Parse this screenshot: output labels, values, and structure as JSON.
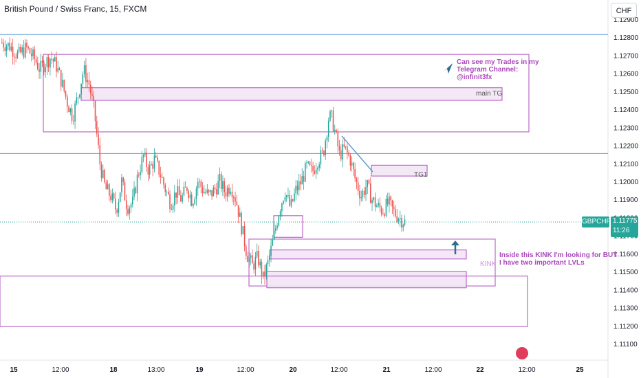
{
  "header": {
    "title": "British Pound / Swiss Franc, 15, FXCM",
    "currency": "CHF"
  },
  "price_tag": {
    "symbol": "GBPCHF",
    "price": "1.11775",
    "countdown": "11:26"
  },
  "annotations": {
    "trades_note": [
      "Can see my Trades in my",
      "Telegram Channel:",
      "@infinit3fx"
    ],
    "main_tg": "main TG",
    "tg1": "TG1",
    "kink": "KINK",
    "kink_note": [
      "Inside this KINK I'm looking for BUY",
      "I have two important LVLs"
    ]
  },
  "colors": {
    "up": "#26a69a",
    "down": "#ef5350",
    "zone_border": "#ba68c8",
    "zone_fill": "#f3e5f5",
    "hline": "#5b9bd5",
    "note_text": "#ab47bc",
    "arrow": "#2e6d8e"
  },
  "chart_data": {
    "type": "candlestick",
    "title": "British Pound / Swiss Franc, 15, FXCM",
    "ylim": [
      1.1105,
      1.1295
    ],
    "y_ticks": [
      "1.12900",
      "1.12800",
      "1.12700",
      "1.12600",
      "1.12500",
      "1.12400",
      "1.12300",
      "1.12200",
      "1.12100",
      "1.12000",
      "1.11900",
      "1.11800",
      "1.11700",
      "1.11600",
      "1.11500",
      "1.11400",
      "1.11300",
      "1.11200",
      "1.11100"
    ],
    "x_ticks": [
      "15",
      "12:00",
      "18",
      "13:00",
      "19",
      "12:00",
      "20",
      "12:00",
      "21",
      "12:00",
      "22",
      "12:00",
      "25"
    ],
    "last_price": 1.11775,
    "horizontal_lines": [
      1.12815,
      1.12155,
      1.11775
    ],
    "path_points": [
      [
        0,
        1.1277
      ],
      [
        3,
        1.1275
      ],
      [
        6,
        1.127
      ],
      [
        9,
        1.1274
      ],
      [
        12,
        1.1268
      ],
      [
        14,
        1.1262
      ],
      [
        16,
        1.1266
      ],
      [
        18,
        1.1269
      ],
      [
        20,
        1.1264
      ],
      [
        22,
        1.1255
      ],
      [
        24,
        1.1244
      ],
      [
        26,
        1.1236
      ],
      [
        28,
        1.1248
      ],
      [
        30,
        1.1262
      ],
      [
        32,
        1.1254
      ],
      [
        34,
        1.1238
      ],
      [
        36,
        1.121
      ],
      [
        38,
        1.1196
      ],
      [
        40,
        1.1192
      ],
      [
        42,
        1.1184
      ],
      [
        44,
        1.12
      ],
      [
        46,
        1.1186
      ],
      [
        48,
        1.1188
      ],
      [
        50,
        1.1204
      ],
      [
        52,
        1.1214
      ],
      [
        54,
        1.1206
      ],
      [
        56,
        1.1212
      ],
      [
        58,
        1.1205
      ],
      [
        60,
        1.1196
      ],
      [
        62,
        1.1188
      ],
      [
        64,
        1.1194
      ],
      [
        66,
        1.119
      ],
      [
        68,
        1.1197
      ],
      [
        70,
        1.1189
      ],
      [
        72,
        1.12
      ],
      [
        74,
        1.1195
      ],
      [
        76,
        1.1192
      ],
      [
        78,
        1.1195
      ],
      [
        80,
        1.12
      ],
      [
        82,
        1.1194
      ],
      [
        84,
        1.1198
      ],
      [
        86,
        1.119
      ],
      [
        88,
        1.1175
      ],
      [
        90,
        1.116
      ],
      [
        92,
        1.1153
      ],
      [
        94,
        1.1158
      ],
      [
        96,
        1.1146
      ],
      [
        98,
        1.1156
      ],
      [
        100,
        1.117
      ],
      [
        102,
        1.1185
      ],
      [
        104,
        1.1195
      ],
      [
        106,
        1.1185
      ],
      [
        108,
        1.1195
      ],
      [
        110,
        1.12
      ],
      [
        112,
        1.1208
      ],
      [
        114,
        1.1205
      ],
      [
        116,
        1.1212
      ],
      [
        118,
        1.1215
      ],
      [
        120,
        1.1235
      ],
      [
        121,
        1.1236
      ],
      [
        122,
        1.123
      ],
      [
        124,
        1.1215
      ],
      [
        126,
        1.1218
      ],
      [
        128,
        1.1212
      ],
      [
        130,
        1.12
      ],
      [
        132,
        1.1192
      ],
      [
        134,
        1.1198
      ],
      [
        136,
        1.119
      ],
      [
        138,
        1.1186
      ],
      [
        140,
        1.1184
      ],
      [
        142,
        1.1188
      ],
      [
        144,
        1.1183
      ],
      [
        146,
        1.118
      ],
      [
        148,
        1.11775
      ]
    ],
    "zones": [
      {
        "name": "upper zone",
        "low": 1.12275,
        "high": 1.12705
      },
      {
        "name": "main TG",
        "low": 1.1245,
        "high": 1.1252
      },
      {
        "name": "TG1",
        "low": 1.1203,
        "high": 1.1209
      },
      {
        "name": "KINK",
        "low": 1.1142,
        "high": 1.1168
      },
      {
        "name": "KINK level 1",
        "low": 1.1157,
        "high": 1.1162
      },
      {
        "name": "KINK level 2",
        "low": 1.1141,
        "high": 1.115
      },
      {
        "name": "small box",
        "low": 1.1169,
        "high": 1.1181
      },
      {
        "name": "lower zone",
        "low": 1.11195,
        "high": 1.11475
      }
    ]
  }
}
